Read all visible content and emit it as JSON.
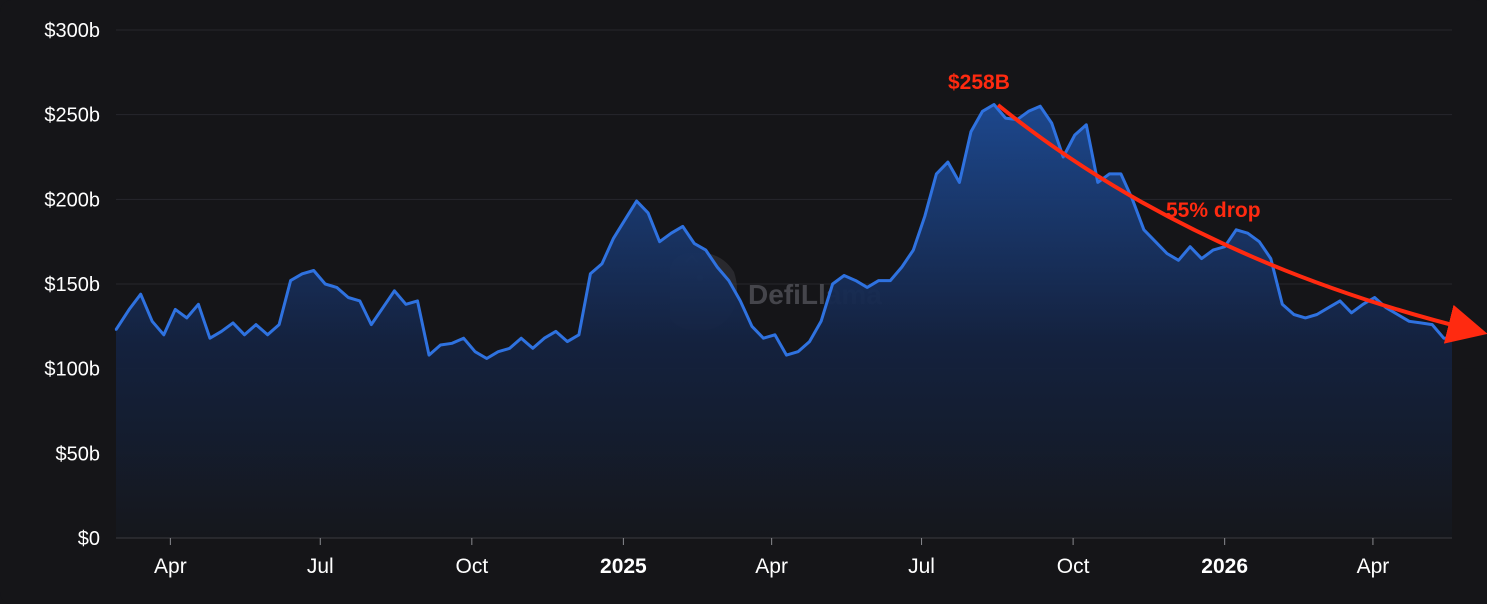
{
  "chart_data": {
    "type": "area",
    "title": "",
    "xlabel": "",
    "ylabel": "",
    "ylim": [
      0,
      300
    ],
    "y_unit": "billion USD",
    "yticks": [
      "$0",
      "$50b",
      "$100b",
      "$150b",
      "$200b",
      "$250b",
      "$300b"
    ],
    "xticks": [
      {
        "label": "Apr",
        "date": "2024-04-01",
        "bold": false
      },
      {
        "label": "Jul",
        "date": "2024-07-01",
        "bold": false
      },
      {
        "label": "Oct",
        "date": "2024-10-01",
        "bold": false
      },
      {
        "label": "2025",
        "date": "2025-01-01",
        "bold": true
      },
      {
        "label": "Apr",
        "date": "2025-04-01",
        "bold": false
      },
      {
        "label": "Jul",
        "date": "2025-07-01",
        "bold": false
      },
      {
        "label": "Oct",
        "date": "2025-10-01",
        "bold": false
      },
      {
        "label": "2026",
        "date": "2026-01-01",
        "bold": true
      },
      {
        "label": "Apr",
        "date": "2026-04-01",
        "bold": false
      }
    ],
    "x_range": [
      "2024-02-28",
      "2026-05-19"
    ],
    "grid": true,
    "line_color": "#2f72e0",
    "series": [
      {
        "values": [
          [
            "2024-02-28",
            123
          ],
          [
            "2024-03-07",
            135
          ],
          [
            "2024-03-14",
            144
          ],
          [
            "2024-03-21",
            128
          ],
          [
            "2024-03-28",
            120
          ],
          [
            "2024-04-04",
            135
          ],
          [
            "2024-04-11",
            130
          ],
          [
            "2024-04-18",
            138
          ],
          [
            "2024-04-25",
            118
          ],
          [
            "2024-05-02",
            122
          ],
          [
            "2024-05-09",
            127
          ],
          [
            "2024-05-16",
            120
          ],
          [
            "2024-05-23",
            126
          ],
          [
            "2024-05-30",
            120
          ],
          [
            "2024-06-06",
            126
          ],
          [
            "2024-06-13",
            152
          ],
          [
            "2024-06-20",
            156
          ],
          [
            "2024-06-27",
            158
          ],
          [
            "2024-07-04",
            150
          ],
          [
            "2024-07-11",
            148
          ],
          [
            "2024-07-18",
            142
          ],
          [
            "2024-07-25",
            140
          ],
          [
            "2024-08-01",
            126
          ],
          [
            "2024-08-08",
            136
          ],
          [
            "2024-08-15",
            146
          ],
          [
            "2024-08-22",
            138
          ],
          [
            "2024-08-29",
            140
          ],
          [
            "2024-09-05",
            108
          ],
          [
            "2024-09-12",
            114
          ],
          [
            "2024-09-19",
            115
          ],
          [
            "2024-09-26",
            118
          ],
          [
            "2024-10-03",
            110
          ],
          [
            "2024-10-10",
            106
          ],
          [
            "2024-10-17",
            110
          ],
          [
            "2024-10-24",
            112
          ],
          [
            "2024-10-31",
            118
          ],
          [
            "2024-11-07",
            112
          ],
          [
            "2024-11-14",
            118
          ],
          [
            "2024-11-21",
            122
          ],
          [
            "2024-11-28",
            116
          ],
          [
            "2024-12-05",
            120
          ],
          [
            "2024-12-12",
            156
          ],
          [
            "2024-12-19",
            162
          ],
          [
            "2024-12-26",
            177
          ],
          [
            "2025-01-02",
            188
          ],
          [
            "2025-01-09",
            199
          ],
          [
            "2025-01-16",
            192
          ],
          [
            "2025-01-23",
            175
          ],
          [
            "2025-01-30",
            180
          ],
          [
            "2025-02-06",
            184
          ],
          [
            "2025-02-13",
            174
          ],
          [
            "2025-02-20",
            170
          ],
          [
            "2025-02-27",
            160
          ],
          [
            "2025-03-06",
            152
          ],
          [
            "2025-03-13",
            140
          ],
          [
            "2025-03-20",
            125
          ],
          [
            "2025-03-27",
            118
          ],
          [
            "2025-04-03",
            120
          ],
          [
            "2025-04-10",
            108
          ],
          [
            "2025-04-17",
            110
          ],
          [
            "2025-04-24",
            116
          ],
          [
            "2025-05-01",
            128
          ],
          [
            "2025-05-08",
            150
          ],
          [
            "2025-05-15",
            155
          ],
          [
            "2025-05-22",
            152
          ],
          [
            "2025-05-29",
            148
          ],
          [
            "2025-06-05",
            152
          ],
          [
            "2025-06-12",
            152
          ],
          [
            "2025-06-19",
            160
          ],
          [
            "2025-06-26",
            170
          ],
          [
            "2025-07-03",
            190
          ],
          [
            "2025-07-10",
            215
          ],
          [
            "2025-07-17",
            222
          ],
          [
            "2025-07-24",
            210
          ],
          [
            "2025-07-31",
            240
          ],
          [
            "2025-08-07",
            252
          ],
          [
            "2025-08-14",
            256
          ],
          [
            "2025-08-21",
            248
          ],
          [
            "2025-08-28",
            247
          ],
          [
            "2025-09-04",
            252
          ],
          [
            "2025-09-11",
            255
          ],
          [
            "2025-09-18",
            245
          ],
          [
            "2025-09-25",
            225
          ],
          [
            "2025-10-02",
            238
          ],
          [
            "2025-10-09",
            244
          ],
          [
            "2025-10-16",
            210
          ],
          [
            "2025-10-23",
            215
          ],
          [
            "2025-10-30",
            215
          ],
          [
            "2025-11-06",
            200
          ],
          [
            "2025-11-13",
            182
          ],
          [
            "2025-11-20",
            175
          ],
          [
            "2025-11-27",
            168
          ],
          [
            "2025-12-04",
            164
          ],
          [
            "2025-12-11",
            172
          ],
          [
            "2025-12-18",
            165
          ],
          [
            "2025-12-25",
            170
          ],
          [
            "2026-01-01",
            172
          ],
          [
            "2026-01-08",
            182
          ],
          [
            "2026-01-15",
            180
          ],
          [
            "2026-01-22",
            175
          ],
          [
            "2026-01-29",
            165
          ],
          [
            "2026-02-05",
            138
          ],
          [
            "2026-02-12",
            132
          ],
          [
            "2026-02-19",
            130
          ],
          [
            "2026-02-26",
            132
          ],
          [
            "2026-03-05",
            136
          ],
          [
            "2026-03-12",
            140
          ],
          [
            "2026-03-19",
            133
          ],
          [
            "2026-03-26",
            138
          ],
          [
            "2026-04-02",
            142
          ],
          [
            "2026-04-09",
            136
          ],
          [
            "2026-04-16",
            132
          ],
          [
            "2026-04-23",
            128
          ],
          [
            "2026-04-30",
            127
          ],
          [
            "2026-05-07",
            126
          ],
          [
            "2026-05-14",
            118
          ],
          [
            "2026-05-19",
            118
          ]
        ]
      }
    ],
    "annotations": {
      "peak_label": "$258B",
      "drop_label": "55% drop",
      "arrow_color": "#ff2a10"
    }
  },
  "watermark": {
    "text": "DefiLlama",
    "icon": "llama-logo-icon"
  }
}
